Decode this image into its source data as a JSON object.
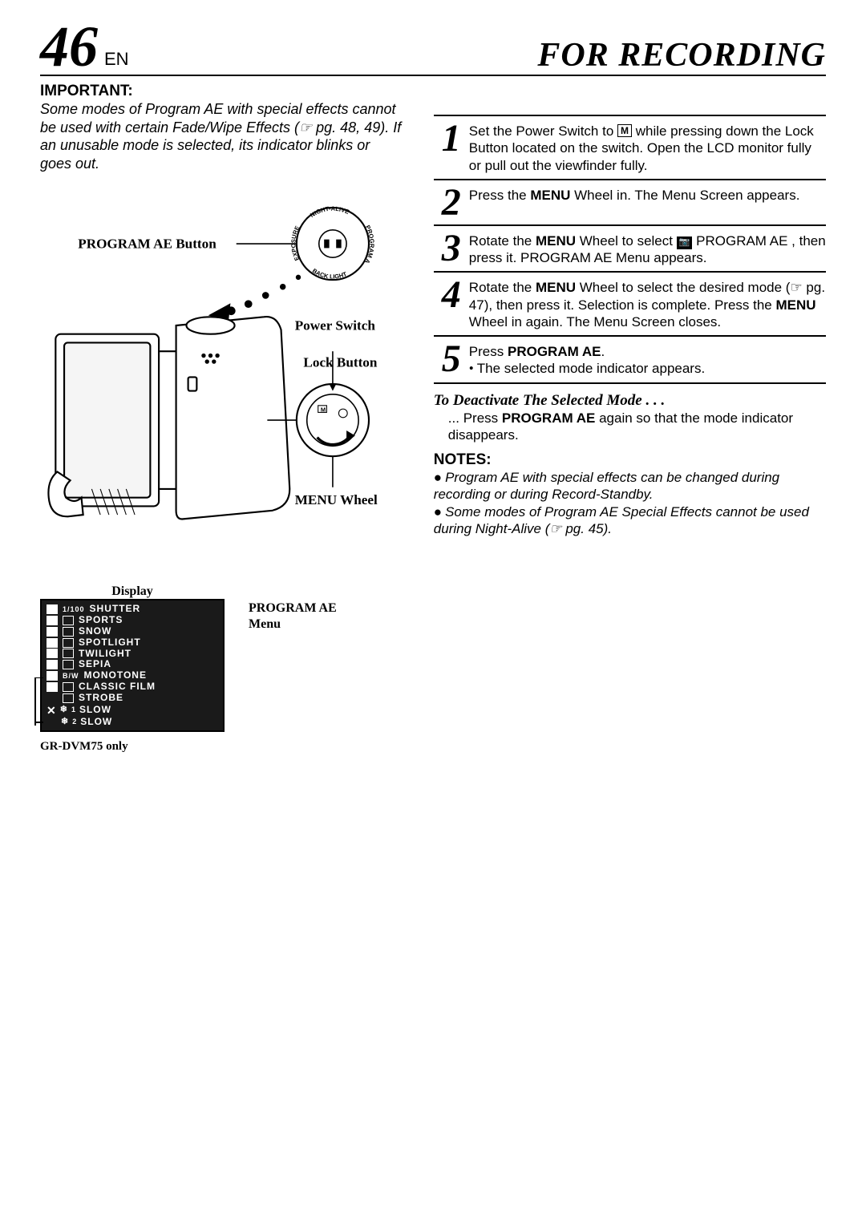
{
  "header": {
    "page_number": "46",
    "lang_label": "EN",
    "section_title": "FOR RECORDING"
  },
  "important": {
    "label": "IMPORTANT:",
    "text_a": "Some modes of Program AE with special effects cannot be used with certain Fade/Wipe Effects (",
    "text_ref": "☞",
    "text_b": " pg. 48, 49). If an unusable mode is selected, its indicator blinks or goes out."
  },
  "diagram": {
    "label_program_ae": "PROGRAM AE Button",
    "label_power": "Power Switch",
    "label_lock": "Lock Button",
    "label_menu": "MENU Wheel",
    "ring_top": "NIGHT-ALIVE",
    "ring_left": "EXPOSURE",
    "ring_right": "PROGRAM AE",
    "ring_bottom": "BACK LIGHT"
  },
  "steps": [
    {
      "num": "1",
      "text_a": "Set the Power Switch to ",
      "icon": "M",
      "text_b": " while pressing down the Lock Button located on the switch. Open the LCD monitor fully or pull out the viewfinder fully.",
      "bold": ""
    },
    {
      "num": "2",
      "text_a": "Press the ",
      "bold": "MENU",
      "text_b": " Wheel in. The Menu Screen appears."
    },
    {
      "num": "3",
      "text_a": "Rotate the ",
      "bold": "MENU",
      "text_b": " Wheel to select ",
      "prog_icon": true,
      "text_c": " PROGRAM AE , then press it. PROGRAM AE Menu appears."
    },
    {
      "num": "4",
      "text_a": "Rotate the ",
      "bold": "MENU",
      "text_b": " Wheel to select the desired mode (",
      "ref": "☞",
      "text_c": " pg. 47), then press it. Selection is complete. Press the ",
      "bold2": "MENU",
      "text_d": " Wheel in again. The Menu Screen closes."
    },
    {
      "num": "5",
      "text_a": "Press ",
      "bold": "PROGRAM AE",
      "text_b": ".",
      "sub": "The selected mode indicator appears."
    }
  ],
  "deactivate": {
    "title": "To Deactivate The Selected Mode . . .",
    "text_a": "... Press ",
    "bold": "PROGRAM AE",
    "text_b": " again so that the mode indicator disappears."
  },
  "notes": {
    "label": "NOTES:",
    "item1": "Program AE with special effects can be changed during recording or during Record-Standby.",
    "item2_a": "Some modes of Program AE Special Effects cannot be used during Night-Alive (",
    "item2_ref": "☞",
    "item2_b": " pg. 45)."
  },
  "display": {
    "label": "Display",
    "menu_label_a": "PROGRAM AE",
    "menu_label_b": "Menu",
    "footnote": "GR-DVM75 only",
    "lcd_items": [
      {
        "icon": true,
        "sub": "1/100",
        "text": "SHUTTER"
      },
      {
        "icon": true,
        "sub_icon": true,
        "text": "SPORTS"
      },
      {
        "icon": true,
        "sub_icon": true,
        "text": "SNOW"
      },
      {
        "icon": true,
        "sub_icon": true,
        "text": "SPOTLIGHT"
      },
      {
        "icon": true,
        "sub_icon": true,
        "text": "TWILIGHT"
      },
      {
        "icon": true,
        "sub_icon": true,
        "text": "SEPIA"
      },
      {
        "icon": true,
        "sub": "B/W",
        "text": "MONOTONE"
      },
      {
        "icon": true,
        "sub_icon": true,
        "text": "CLASSIC FILM"
      },
      {
        "blank_icon": true,
        "sub_icon": true,
        "text": "STROBE"
      }
    ],
    "lcd_off": [
      {
        "x": true,
        "sub": "1",
        "text": "SLOW"
      },
      {
        "blank": true,
        "sub": "2",
        "text": "SLOW"
      }
    ]
  },
  "colors": {
    "page_bg": "#ffffff",
    "text": "#000000",
    "lcd_bg": "#1a1a1a",
    "lcd_fg": "#ffffff"
  }
}
